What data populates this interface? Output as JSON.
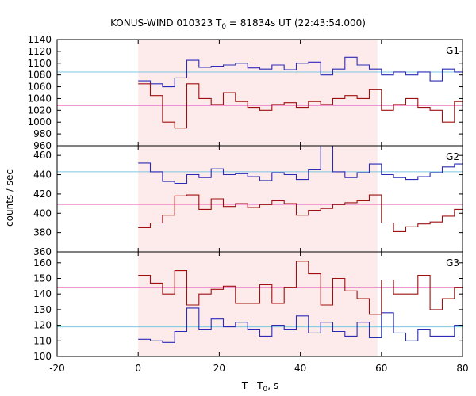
{
  "chart_data": {
    "type": "line",
    "title": "KONUS-WIND 010323 T",
    "title_sub": "0",
    "title_rest": " = 81834s UT (22:43:54.000)",
    "xlabel": "T - T",
    "xlabel_sub": "0",
    "xlabel_rest": ", s",
    "ylabel": "counts / sec",
    "xlim": [
      -20,
      80
    ],
    "x_ticks": [
      -20,
      0,
      20,
      40,
      60,
      80
    ],
    "highlight_interval": [
      0,
      59
    ],
    "colors": {
      "highlight": "#fdeaea",
      "series_blue": "#2b2bb8",
      "series_red": "#a01010",
      "level_blue": "#7ec8e3",
      "level_red": "#ee88cc"
    },
    "panels": [
      {
        "label": "G1",
        "ylim": [
          960,
          1140
        ],
        "y_ticks": [
          960,
          980,
          1000,
          1020,
          1040,
          1060,
          1080,
          1100,
          1120,
          1140
        ],
        "blue_level": 1085,
        "red_level": 1028,
        "series": [
          {
            "color": "blue",
            "x_edges": [
              0,
              3,
              6,
              9,
              12,
              15,
              18,
              21,
              24,
              27,
              30,
              33,
              36,
              39,
              42,
              45,
              48,
              51,
              54,
              57,
              60,
              63,
              66,
              69,
              72,
              75,
              78,
              80
            ],
            "values": [
              1070,
              1065,
              1060,
              1075,
              1105,
              1093,
              1095,
              1097,
              1100,
              1092,
              1090,
              1097,
              1089,
              1100,
              1102,
              1080,
              1090,
              1110,
              1097,
              1090,
              1080,
              1085,
              1080,
              1085,
              1070,
              1090,
              1085,
              1092
            ]
          },
          {
            "color": "red",
            "x_edges": [
              0,
              3,
              6,
              9,
              12,
              15,
              18,
              21,
              24,
              27,
              30,
              33,
              36,
              39,
              42,
              45,
              48,
              51,
              54,
              57,
              60,
              63,
              66,
              69,
              72,
              75,
              78,
              80
            ],
            "values": [
              1065,
              1045,
              1000,
              990,
              1065,
              1040,
              1030,
              1050,
              1035,
              1025,
              1020,
              1030,
              1033,
              1025,
              1035,
              1030,
              1040,
              1045,
              1040,
              1055,
              1020,
              1030,
              1040,
              1025,
              1020,
              1000,
              1035,
              1030
            ]
          }
        ]
      },
      {
        "label": "G2",
        "ylim": [
          360,
          470
        ],
        "y_ticks": [
          360,
          380,
          400,
          420,
          440,
          460
        ],
        "blue_level": 443,
        "red_level": 409,
        "series": [
          {
            "color": "blue",
            "x_edges": [
              0,
              3,
              6,
              9,
              12,
              15,
              18,
              21,
              24,
              27,
              30,
              33,
              36,
              39,
              42,
              45,
              48,
              51,
              54,
              57,
              60,
              63,
              66,
              69,
              72,
              75,
              78,
              80
            ],
            "values": [
              452,
              443,
              433,
              431,
              440,
              437,
              446,
              440,
              441,
              438,
              434,
              442,
              440,
              435,
              445,
              470,
              443,
              437,
              442,
              451,
              440,
              437,
              435,
              438,
              442,
              448,
              451,
              460
            ]
          },
          {
            "color": "red",
            "x_edges": [
              0,
              3,
              6,
              9,
              12,
              15,
              18,
              21,
              24,
              27,
              30,
              33,
              36,
              39,
              42,
              45,
              48,
              51,
              54,
              57,
              60,
              63,
              66,
              69,
              72,
              75,
              78,
              80
            ],
            "values": [
              385,
              390,
              398,
              418,
              419,
              404,
              415,
              407,
              410,
              406,
              409,
              413,
              410,
              398,
              403,
              405,
              409,
              411,
              413,
              419,
              390,
              381,
              386,
              389,
              391,
              397,
              404,
              395
            ]
          }
        ]
      },
      {
        "label": "G3",
        "ylim": [
          100,
          167
        ],
        "y_ticks": [
          100,
          110,
          120,
          130,
          140,
          150,
          160
        ],
        "blue_level": 119,
        "red_level": 144,
        "series": [
          {
            "color": "blue",
            "x_edges": [
              0,
              3,
              6,
              9,
              12,
              15,
              18,
              21,
              24,
              27,
              30,
              33,
              36,
              39,
              42,
              45,
              48,
              51,
              54,
              57,
              60,
              63,
              66,
              69,
              72,
              75,
              78,
              80
            ],
            "values": [
              111,
              110,
              109,
              116,
              131,
              117,
              124,
              119,
              122,
              117,
              113,
              120,
              117,
              126,
              115,
              122,
              116,
              113,
              122,
              112,
              128,
              115,
              110,
              117,
              113,
              113,
              120,
              121
            ]
          },
          {
            "color": "red",
            "x_edges": [
              0,
              3,
              6,
              9,
              12,
              15,
              18,
              21,
              24,
              27,
              30,
              33,
              36,
              39,
              42,
              45,
              48,
              51,
              54,
              57,
              60,
              63,
              66,
              69,
              72,
              75,
              78,
              80
            ],
            "values": [
              152,
              147,
              140,
              155,
              133,
              140,
              143,
              145,
              134,
              134,
              146,
              134,
              144,
              161,
              153,
              133,
              150,
              142,
              137,
              127,
              149,
              140,
              140,
              152,
              130,
              137,
              144,
              138
            ]
          }
        ]
      }
    ]
  }
}
